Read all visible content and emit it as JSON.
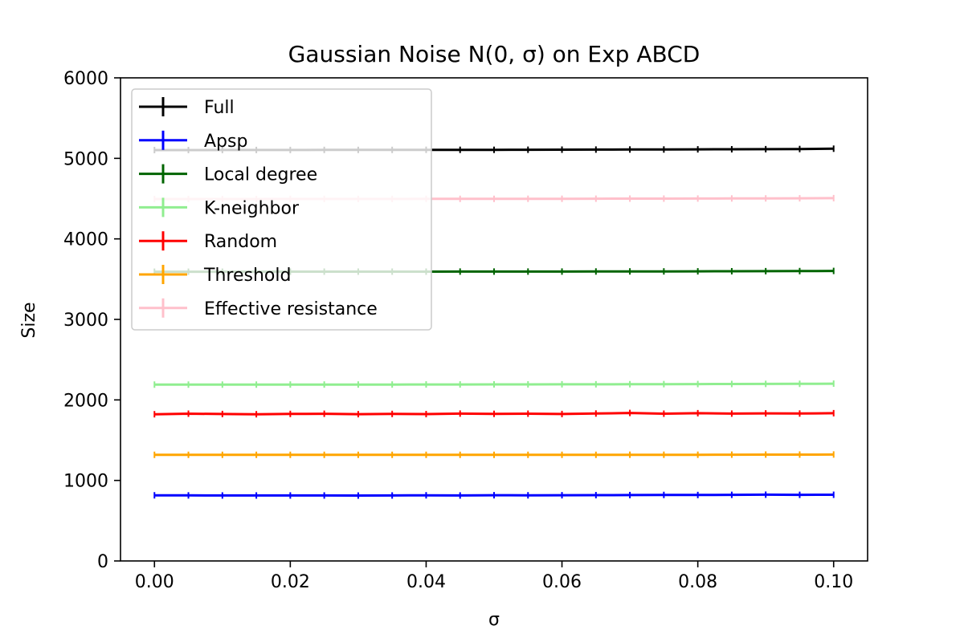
{
  "chart_data": {
    "type": "line",
    "title": "Gaussian Noise N(0, σ) on Exp ABCD",
    "xlabel": "σ",
    "ylabel": "Size",
    "xlim": [
      -0.005,
      0.105
    ],
    "ylim": [
      0,
      6000
    ],
    "xticks": [
      0.0,
      0.02,
      0.04,
      0.06,
      0.08,
      0.1
    ],
    "xtick_labels": [
      "0.00",
      "0.02",
      "0.04",
      "0.06",
      "0.08",
      "0.10"
    ],
    "yticks": [
      0,
      1000,
      2000,
      3000,
      4000,
      5000,
      6000
    ],
    "ytick_labels": [
      "0",
      "1000",
      "2000",
      "3000",
      "4000",
      "5000",
      "6000"
    ],
    "grid": false,
    "legend_position": "top-left",
    "x": [
      0.0,
      0.005,
      0.01,
      0.015,
      0.02,
      0.025,
      0.03,
      0.035,
      0.04,
      0.045,
      0.05,
      0.055,
      0.06,
      0.065,
      0.07,
      0.075,
      0.08,
      0.085,
      0.09,
      0.095,
      0.1
    ],
    "series": [
      {
        "name": "Full",
        "color": "#000000",
        "values": [
          5103,
          5103,
          5104,
          5104,
          5104,
          5105,
          5105,
          5105,
          5106,
          5106,
          5106,
          5107,
          5108,
          5109,
          5110,
          5110,
          5112,
          5113,
          5114,
          5116,
          5120
        ]
      },
      {
        "name": "Apsp",
        "color": "#0000ff",
        "values": [
          815,
          814,
          813,
          813,
          813,
          813,
          812,
          813,
          815,
          813,
          816,
          815,
          816,
          817,
          818,
          820,
          819,
          821,
          823,
          821,
          822
        ]
      },
      {
        "name": "Local degree",
        "color": "#006400",
        "values": [
          3592,
          3592,
          3592,
          3592,
          3593,
          3593,
          3593,
          3593,
          3593,
          3594,
          3594,
          3594,
          3594,
          3595,
          3596,
          3596,
          3597,
          3598,
          3599,
          3600,
          3602
        ]
      },
      {
        "name": "K-neighbor",
        "color": "#90ee90",
        "values": [
          2190,
          2190,
          2190,
          2190,
          2191,
          2191,
          2191,
          2191,
          2192,
          2192,
          2193,
          2193,
          2194,
          2194,
          2195,
          2196,
          2197,
          2198,
          2199,
          2200,
          2202
        ]
      },
      {
        "name": "Random",
        "color": "#ff0000",
        "values": [
          1822,
          1829,
          1825,
          1822,
          1826,
          1828,
          1823,
          1826,
          1824,
          1830,
          1827,
          1829,
          1825,
          1831,
          1838,
          1829,
          1835,
          1830,
          1833,
          1831,
          1835
        ]
      },
      {
        "name": "Threshold",
        "color": "#ffa500",
        "values": [
          1318,
          1318,
          1318,
          1318,
          1318,
          1318,
          1318,
          1318,
          1318,
          1318,
          1318,
          1318,
          1318,
          1318,
          1319,
          1319,
          1319,
          1320,
          1321,
          1321,
          1322
        ]
      },
      {
        "name": "Effective resistance",
        "color": "#ffc0cb",
        "values": [
          4495,
          4495,
          4495,
          4495,
          4496,
          4496,
          4496,
          4496,
          4497,
          4497,
          4497,
          4498,
          4498,
          4499,
          4500,
          4500,
          4501,
          4502,
          4503,
          4504,
          4506
        ]
      }
    ]
  }
}
